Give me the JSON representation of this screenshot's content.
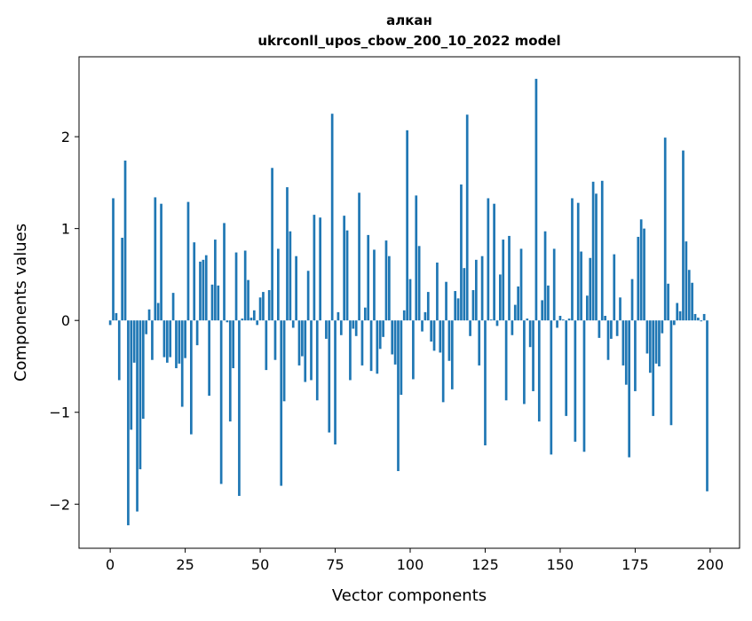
{
  "chart_data": {
    "type": "bar",
    "title": "алкан",
    "subtitle": "ukrconll_upos_cbow_200_10_2022 model",
    "xlabel": "Vector components",
    "ylabel": "Components values",
    "xlim": [
      -10.4,
      209.8
    ],
    "ylim": [
      -2.48,
      2.87
    ],
    "xticks": [
      0,
      25,
      50,
      75,
      100,
      125,
      150,
      175,
      200
    ],
    "yticks": [
      -2,
      -1,
      0,
      1,
      2
    ],
    "ytick_labels": [
      "−2",
      "−1",
      "0",
      "1",
      "2"
    ],
    "grid": false,
    "bar_color": "#1f77b4",
    "values": [
      -0.05,
      1.33,
      0.08,
      -0.65,
      0.9,
      1.74,
      -2.23,
      -1.19,
      -0.46,
      -2.08,
      -1.62,
      -1.07,
      -0.15,
      0.12,
      -0.43,
      1.34,
      0.19,
      1.27,
      -0.4,
      -0.46,
      -0.4,
      0.3,
      -0.52,
      -0.47,
      -0.94,
      -0.41,
      1.29,
      -1.24,
      0.85,
      -0.27,
      0.64,
      0.66,
      0.71,
      -0.82,
      0.39,
      0.88,
      0.38,
      -1.78,
      1.06,
      -0.02,
      -1.1,
      -0.52,
      0.74,
      -1.91,
      0.02,
      0.76,
      0.44,
      0.03,
      0.11,
      -0.05,
      0.25,
      0.31,
      -0.54,
      0.33,
      1.66,
      -0.43,
      0.78,
      -1.8,
      -0.88,
      1.45,
      0.97,
      -0.08,
      0.7,
      -0.49,
      -0.39,
      -0.67,
      0.54,
      -0.65,
      1.15,
      -0.87,
      1.12,
      0.0,
      -0.2,
      -1.22,
      2.25,
      -1.35,
      0.09,
      -0.16,
      1.14,
      0.98,
      -0.65,
      -0.09,
      -0.17,
      1.39,
      -0.49,
      0.14,
      0.93,
      -0.55,
      0.77,
      -0.58,
      -0.31,
      -0.18,
      0.87,
      0.7,
      -0.37,
      -0.48,
      -1.64,
      -0.81,
      0.11,
      2.07,
      0.45,
      -0.64,
      1.36,
      0.81,
      -0.12,
      0.09,
      0.31,
      -0.23,
      -0.33,
      0.63,
      -0.35,
      -0.89,
      0.42,
      -0.44,
      -0.75,
      0.32,
      0.24,
      1.48,
      0.57,
      2.24,
      -0.17,
      0.33,
      0.66,
      -0.49,
      0.7,
      -1.36,
      1.33,
      0.01,
      1.27,
      -0.06,
      0.5,
      0.88,
      -0.87,
      0.92,
      -0.16,
      0.17,
      0.37,
      0.78,
      -0.91,
      0.02,
      -0.29,
      -0.77,
      2.63,
      -1.1,
      0.22,
      0.97,
      0.38,
      -1.46,
      0.78,
      -0.08,
      0.05,
      0.01,
      -1.04,
      0.02,
      1.33,
      -1.32,
      1.28,
      0.75,
      -1.43,
      0.27,
      0.68,
      1.51,
      1.38,
      -0.19,
      1.52,
      0.05,
      -0.43,
      -0.2,
      0.72,
      -0.17,
      0.25,
      -0.49,
      -0.7,
      -1.49,
      0.45,
      -0.77,
      0.91,
      1.1,
      1.0,
      -0.36,
      -0.57,
      -1.04,
      -0.47,
      -0.5,
      -0.14,
      1.99,
      0.4,
      -1.14,
      -0.05,
      0.19,
      0.1,
      1.85,
      0.86,
      0.55,
      0.41,
      0.07,
      0.03,
      -0.01,
      0.07,
      -1.86
    ]
  }
}
